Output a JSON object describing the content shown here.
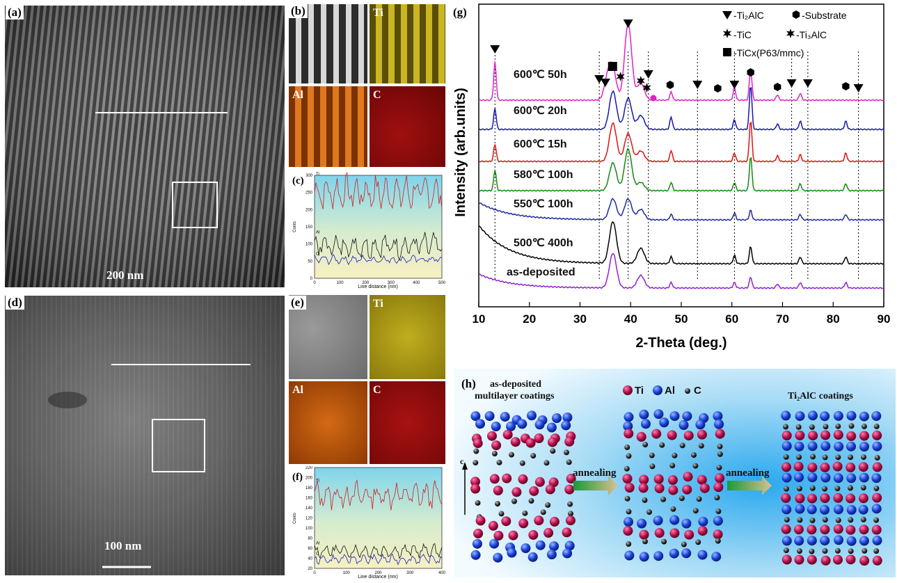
{
  "panels": {
    "a": {
      "label": "(a)",
      "scale": "200 nm"
    },
    "b": {
      "label": "(b)",
      "maps": [
        "Ti",
        "Al",
        "C"
      ]
    },
    "c": {
      "label": "(c)",
      "xlabel": "Line distance (nm)",
      "ylabel": "Conts",
      "xticks": [
        "0",
        "100",
        "200",
        "300",
        "400",
        "500"
      ],
      "yticks": [
        "0",
        "50",
        "100",
        "150",
        "200",
        "250",
        "300"
      ],
      "series": [
        "Ti",
        "Al",
        "C"
      ]
    },
    "d": {
      "label": "(d)",
      "scale": "100 nm"
    },
    "e": {
      "label": "(e)",
      "maps": [
        "Ti",
        "Al",
        "C"
      ]
    },
    "f": {
      "label": "(f)",
      "xlabel": "Line distance (nm)",
      "ylabel": "Conts",
      "xticks": [
        "0",
        "100",
        "200",
        "300",
        "400"
      ],
      "yticks": [
        "20",
        "40",
        "60",
        "80",
        "100",
        "120",
        "140",
        "160",
        "180",
        "200",
        "220"
      ],
      "series": [
        "Ti",
        "Al",
        "C"
      ]
    },
    "h": {
      "label": "(h)",
      "left_title_1": "as-deposited",
      "left_title_2": "multilayer coatings",
      "legend_ti": "Ti",
      "legend_al": "Al",
      "legend_c": "C",
      "right_title": "Ti₂AlC coatings",
      "arrow1": "annealing",
      "arrow2": "annealing",
      "axis": "c"
    }
  },
  "chart_data": {
    "type": "line",
    "panel_label": "(g)",
    "xlabel": "2-Theta (deg.)",
    "ylabel": "Intensity (arb.units)",
    "xlim": [
      10,
      90
    ],
    "xticks": [
      10,
      20,
      30,
      40,
      50,
      60,
      70,
      80,
      90
    ],
    "legend": [
      "-Ti₂AlC",
      "-Substrate",
      "-TiC",
      "-Ti₃AlC",
      "-TiCx(P63/mmc)"
    ],
    "dotted_lines_2theta": [
      13.2,
      33.8,
      39.5,
      43.5,
      53.2,
      60.5,
      71.8,
      75.0,
      85.0
    ],
    "series": [
      {
        "name": "600℃ 50h",
        "color": "#e020c8"
      },
      {
        "name": "600℃ 20h",
        "color": "#1515b0"
      },
      {
        "name": "600℃ 15h",
        "color": "#e01010"
      },
      {
        "name": "580℃ 100h",
        "color": "#108a10"
      },
      {
        "name": "550℃ 100h",
        "color": "#1a2aa0"
      },
      {
        "name": "500℃ 400h",
        "color": "#000000"
      },
      {
        "name": "as-deposited",
        "color": "#9020d0"
      }
    ]
  },
  "colors": {
    "ti_map": "#b8a61a",
    "al_map": "#c0600f",
    "c_map": "#8c0a0a",
    "ti_atom": "#b0104a",
    "al_atom": "#1840d8",
    "c_atom": "#222222"
  }
}
